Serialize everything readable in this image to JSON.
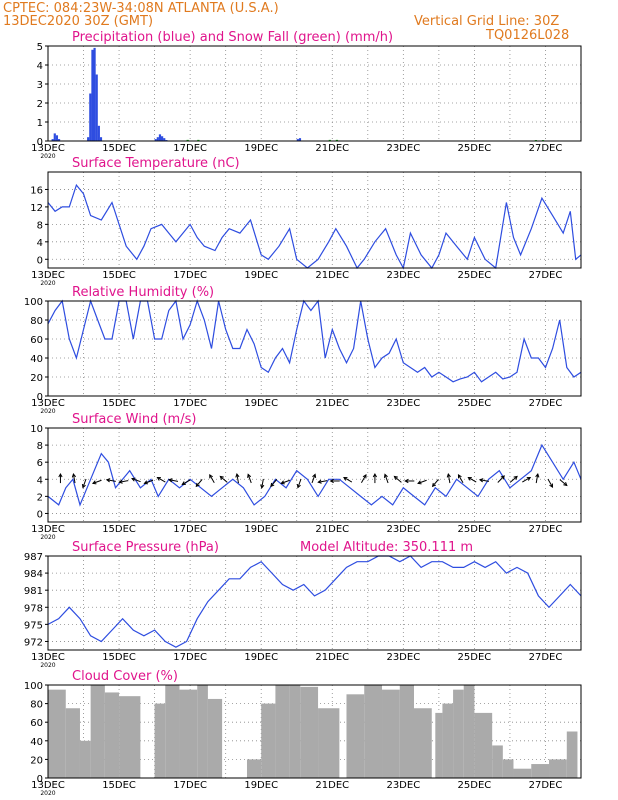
{
  "header": {
    "line1": "CPTEC:   084:23W-34:08N   ATLANTA (U.S.A.)",
    "line2": "13DEC2020 30Z (GMT)",
    "grid_note": "Vertical Grid Line: 30Z",
    "code": "TQ0126L028"
  },
  "colors": {
    "header": "#e07a1f",
    "title": "#e0148c",
    "line": "#2e4de0",
    "snow": "#1cc21c",
    "cloud": "#aaaaaa",
    "arrow": "#000000"
  },
  "x_ticks": [
    "13DEC",
    "15DEC",
    "17DEC",
    "19DEC",
    "21DEC",
    "23DEC",
    "25DEC",
    "27DEC"
  ],
  "year_label": "2020",
  "chart_data": [
    {
      "type": "bar",
      "title": "Precipitation (blue) and Snow Fall (green) (mm/h)",
      "ylim": [
        0,
        5
      ],
      "yticks": [
        "0",
        "1",
        "2",
        "3",
        "4",
        "5"
      ],
      "x_range_days": [
        0,
        15
      ],
      "series": [
        {
          "name": "Precipitation",
          "color": "#2e4de0",
          "x": [
            0.1,
            0.16,
            0.22,
            0.28,
            1.1,
            1.16,
            1.22,
            1.28,
            1.34,
            1.4,
            1.46,
            3.0,
            3.06,
            3.12,
            3.18,
            3.24,
            3.3,
            7.0,
            7.06
          ],
          "values": [
            0.1,
            0.4,
            0.3,
            0.1,
            0.2,
            2.5,
            4.8,
            4.9,
            3.5,
            0.8,
            0.2,
            0.1,
            0.2,
            0.35,
            0.25,
            0.15,
            0.05,
            0.1,
            0.15
          ]
        },
        {
          "name": "Snow Fall",
          "color": "#1cc21c",
          "x": [
            3.9,
            4.2,
            7.9,
            8.1,
            13.7,
            13.9
          ],
          "values": [
            0.06,
            0.06,
            0.06,
            0.06,
            0.05,
            0.05
          ]
        }
      ]
    },
    {
      "type": "line",
      "title": "Surface Temperature (nC)",
      "ylim": [
        -2,
        20
      ],
      "yticks": [
        "0",
        "4",
        "8",
        "12",
        "16"
      ],
      "x": [
        0,
        0.2,
        0.4,
        0.6,
        0.8,
        1.0,
        1.2,
        1.5,
        1.8,
        2.0,
        2.2,
        2.5,
        2.7,
        2.9,
        3.2,
        3.4,
        3.6,
        4.0,
        4.2,
        4.4,
        4.7,
        4.9,
        5.1,
        5.4,
        5.7,
        6.0,
        6.2,
        6.5,
        6.8,
        7.0,
        7.3,
        7.6,
        7.9,
        8.1,
        8.4,
        8.7,
        8.9,
        9.2,
        9.5,
        9.8,
        10.0,
        10.2,
        10.5,
        10.8,
        11.0,
        11.2,
        11.5,
        11.8,
        12.0,
        12.3,
        12.6,
        12.9,
        13.1,
        13.3,
        13.6,
        13.9,
        14.2,
        14.5,
        14.7,
        14.85,
        15.0
      ],
      "values": [
        13,
        11,
        12,
        12,
        17,
        15,
        10,
        9,
        13,
        8,
        3,
        0,
        3,
        7,
        8,
        6,
        4,
        8,
        5,
        3,
        2,
        5,
        7,
        6,
        9,
        1,
        0,
        3,
        7,
        0,
        -2,
        0,
        4,
        7,
        3,
        -3,
        0,
        4,
        7,
        1,
        -2,
        6,
        1,
        -3,
        1,
        6,
        3,
        0,
        5,
        0,
        -2,
        13,
        5,
        1,
        7,
        14,
        10,
        6,
        11,
        0,
        1
      ]
    },
    {
      "type": "line",
      "title": "Relative Humidity (%)",
      "ylim": [
        0,
        100
      ],
      "yticks": [
        "0",
        "20",
        "40",
        "60",
        "80",
        "100"
      ],
      "x": [
        0,
        0.2,
        0.4,
        0.6,
        0.8,
        1.0,
        1.2,
        1.4,
        1.6,
        1.8,
        2.0,
        2.2,
        2.4,
        2.6,
        2.8,
        3.0,
        3.2,
        3.4,
        3.6,
        3.8,
        4.0,
        4.2,
        4.4,
        4.6,
        4.8,
        5.0,
        5.2,
        5.4,
        5.6,
        5.8,
        6.0,
        6.2,
        6.4,
        6.6,
        6.8,
        7.0,
        7.2,
        7.4,
        7.6,
        7.8,
        8.0,
        8.2,
        8.4,
        8.6,
        8.8,
        9.0,
        9.2,
        9.4,
        9.6,
        9.8,
        10.0,
        10.2,
        10.4,
        10.6,
        10.8,
        11.0,
        11.2,
        11.4,
        11.6,
        11.8,
        12.0,
        12.2,
        12.4,
        12.6,
        12.8,
        13.0,
        13.2,
        13.4,
        13.6,
        13.8,
        14.0,
        14.2,
        14.4,
        14.6,
        14.8,
        15.0
      ],
      "values": [
        76,
        90,
        100,
        60,
        40,
        70,
        100,
        80,
        60,
        60,
        100,
        100,
        60,
        100,
        100,
        60,
        60,
        90,
        100,
        60,
        75,
        100,
        80,
        50,
        100,
        70,
        50,
        50,
        70,
        55,
        30,
        25,
        40,
        50,
        35,
        70,
        100,
        90,
        100,
        40,
        70,
        50,
        35,
        50,
        100,
        60,
        30,
        40,
        45,
        60,
        35,
        30,
        25,
        30,
        20,
        25,
        20,
        15,
        18,
        20,
        25,
        15,
        20,
        25,
        18,
        20,
        25,
        60,
        40,
        40,
        30,
        50,
        80,
        30,
        20,
        25
      ]
    },
    {
      "type": "line",
      "title": "Surface Wind (m/s)",
      "ylim": [
        -1,
        10
      ],
      "yticks": [
        "0",
        "2",
        "4",
        "6",
        "8",
        "10"
      ],
      "x": [
        0,
        0.3,
        0.5,
        0.7,
        0.9,
        1.1,
        1.3,
        1.5,
        1.7,
        1.9,
        2.1,
        2.3,
        2.6,
        2.9,
        3.1,
        3.4,
        3.7,
        4.0,
        4.3,
        4.6,
        4.9,
        5.2,
        5.5,
        5.8,
        6.1,
        6.4,
        6.7,
        7.0,
        7.3,
        7.6,
        7.9,
        8.2,
        8.5,
        8.8,
        9.1,
        9.4,
        9.7,
        10.0,
        10.3,
        10.6,
        10.9,
        11.2,
        11.5,
        11.8,
        12.1,
        12.4,
        12.7,
        13.0,
        13.3,
        13.6,
        13.9,
        14.2,
        14.5,
        14.8,
        15.0
      ],
      "values": [
        2,
        1,
        3,
        4,
        1,
        3,
        5,
        7,
        6,
        3,
        4,
        5,
        3,
        4,
        2,
        4,
        3,
        4,
        3,
        2,
        3,
        4,
        3,
        1,
        2,
        4,
        3,
        5,
        4,
        2,
        4,
        4,
        3,
        2,
        1,
        2,
        1,
        3,
        2,
        1,
        3,
        2,
        4,
        3,
        2,
        4,
        5,
        3,
        4,
        5,
        8,
        6,
        4,
        6,
        4
      ],
      "arrows": {
        "x": [
          0.35,
          0.75,
          1.05,
          1.45,
          1.85,
          2.2,
          2.55,
          2.9,
          3.25,
          3.6,
          3.95,
          4.3,
          4.65,
          5.0,
          5.35,
          5.7,
          6.05,
          6.4,
          6.75,
          7.1,
          7.45,
          7.8,
          8.15,
          8.5,
          8.85,
          9.2,
          9.55,
          9.9,
          10.25,
          10.6,
          10.95,
          11.3,
          11.65,
          12.0,
          12.35,
          12.7,
          13.05,
          13.4,
          13.75,
          14.1,
          14.45
        ],
        "dir_deg": [
          90,
          100,
          250,
          200,
          170,
          190,
          160,
          200,
          150,
          170,
          210,
          230,
          120,
          140,
          100,
          110,
          260,
          230,
          200,
          250,
          70,
          190,
          180,
          150,
          60,
          90,
          110,
          140,
          180,
          200,
          230,
          100,
          120,
          150,
          170,
          45,
          40,
          30,
          80,
          300,
          320
        ]
      }
    },
    {
      "type": "line",
      "title": "Surface Pressure (hPa)",
      "subtitle": "Model Altitude: 350.111 m",
      "ylim": [
        970.5,
        987
      ],
      "yticks": [
        "972",
        "975",
        "978",
        "981",
        "984",
        "987"
      ],
      "x": [
        0,
        0.3,
        0.6,
        0.9,
        1.2,
        1.5,
        1.8,
        2.1,
        2.4,
        2.7,
        3.0,
        3.3,
        3.6,
        3.9,
        4.2,
        4.5,
        4.8,
        5.1,
        5.4,
        5.7,
        6.0,
        6.3,
        6.6,
        6.9,
        7.2,
        7.5,
        7.8,
        8.1,
        8.4,
        8.7,
        9.0,
        9.3,
        9.6,
        9.9,
        10.2,
        10.5,
        10.8,
        11.1,
        11.4,
        11.7,
        12.0,
        12.3,
        12.6,
        12.9,
        13.2,
        13.5,
        13.8,
        14.1,
        14.4,
        14.7,
        15.0
      ],
      "values": [
        975,
        976,
        978,
        976,
        973,
        972,
        974,
        976,
        974,
        973,
        974,
        972,
        971,
        972,
        976,
        979,
        981,
        983,
        983,
        985,
        986,
        984,
        982,
        981,
        982,
        980,
        981,
        983,
        985,
        986,
        986,
        987,
        987,
        986,
        987,
        985,
        986,
        986,
        985,
        985,
        986,
        985,
        986,
        984,
        985,
        984,
        980,
        978,
        980,
        982,
        980
      ]
    },
    {
      "type": "bar",
      "title": "Cloud Cover (%)",
      "ylim": [
        0,
        100
      ],
      "yticks": [
        "0",
        "20",
        "40",
        "60",
        "80",
        "100"
      ],
      "x_start_days": [
        0.0,
        0.5,
        0.9,
        1.2,
        1.6,
        2.0,
        3.0,
        3.3,
        3.7,
        4.2,
        4.5,
        5.6,
        6.0,
        6.4,
        6.8,
        7.1,
        7.6,
        8.4,
        8.9,
        9.4,
        9.9,
        10.3,
        10.9,
        11.1,
        11.4,
        11.7,
        12.0,
        12.5,
        12.8,
        13.1,
        13.6,
        14.1,
        14.6
      ],
      "x_end_days": [
        0.5,
        0.9,
        1.2,
        1.6,
        2.0,
        2.6,
        3.3,
        3.7,
        4.2,
        4.5,
        4.9,
        6.0,
        6.4,
        6.8,
        7.1,
        7.6,
        8.2,
        8.9,
        9.4,
        9.9,
        10.3,
        10.8,
        11.1,
        11.4,
        11.7,
        12.0,
        12.5,
        12.8,
        13.1,
        13.6,
        14.1,
        14.6,
        14.9
      ],
      "values": [
        95,
        75,
        40,
        100,
        92,
        88,
        80,
        100,
        95,
        100,
        85,
        20,
        80,
        100,
        100,
        98,
        75,
        90,
        100,
        95,
        100,
        75,
        70,
        80,
        95,
        100,
        70,
        35,
        20,
        10,
        15,
        20,
        50
      ]
    }
  ]
}
